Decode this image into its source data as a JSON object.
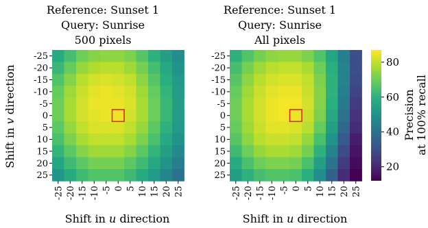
{
  "chart_data": [
    {
      "type": "heatmap",
      "title_lines": [
        "Reference: Sunset 1",
        "Query: Sunrise",
        "500 pixels"
      ],
      "xlabel": "Shift in u direction",
      "xlabel_prefix": "Shift in ",
      "xlabel_var": "u",
      "xlabel_suffix": " direction",
      "ylabel": "Shift in v direction",
      "ylabel_prefix": "Shift in ",
      "ylabel_var": "v",
      "ylabel_suffix": " direction",
      "x_ticks": [
        "-25",
        "-20",
        "-15",
        "-10",
        "-5",
        "0",
        "5",
        "10",
        "15",
        "20",
        "25"
      ],
      "y_ticks": [
        "-25",
        "-20",
        "-15",
        "-10",
        "-5",
        "0",
        "5",
        "10",
        "15",
        "20",
        "25"
      ],
      "highlight": {
        "u": 0,
        "v": 0,
        "color": "#e41a1c"
      },
      "values": [
        [
          58,
          64,
          70,
          73,
          74,
          74,
          72,
          67,
          60,
          54,
          48
        ],
        [
          62,
          69,
          75,
          78,
          79,
          79,
          76,
          71,
          64,
          57,
          50
        ],
        [
          66,
          73,
          79,
          82,
          83,
          82,
          80,
          74,
          67,
          59,
          52
        ],
        [
          69,
          76,
          81,
          84,
          85,
          84,
          82,
          76,
          69,
          61,
          53
        ],
        [
          70,
          77,
          82,
          85,
          85,
          85,
          83,
          77,
          70,
          62,
          54
        ],
        [
          70,
          77,
          82,
          84,
          85,
          85,
          82,
          77,
          70,
          62,
          53
        ],
        [
          68,
          75,
          80,
          83,
          83,
          83,
          80,
          75,
          68,
          60,
          52
        ],
        [
          65,
          72,
          77,
          80,
          80,
          80,
          77,
          72,
          65,
          57,
          50
        ],
        [
          61,
          68,
          73,
          76,
          76,
          76,
          73,
          68,
          61,
          54,
          47
        ],
        [
          56,
          63,
          68,
          71,
          71,
          71,
          68,
          63,
          57,
          50,
          44
        ],
        [
          51,
          58,
          63,
          66,
          66,
          66,
          63,
          58,
          52,
          46,
          40
        ]
      ]
    },
    {
      "type": "heatmap",
      "title_lines": [
        "Reference: Sunset 1",
        "Query: Sunrise",
        "All pixels"
      ],
      "xlabel": "Shift in u direction",
      "xlabel_prefix": "Shift in ",
      "xlabel_var": "u",
      "xlabel_suffix": " direction",
      "x_ticks": [
        "-25",
        "-20",
        "-15",
        "-10",
        "-5",
        "0",
        "5",
        "10",
        "15",
        "20",
        "25"
      ],
      "y_ticks": [
        "-25",
        "-20",
        "-15",
        "-10",
        "-5",
        "0",
        "5",
        "10",
        "15",
        "20",
        "25"
      ],
      "highlight": {
        "u": 0,
        "v": 0,
        "color": "#e41a1c"
      },
      "values": [
        [
          60,
          66,
          71,
          74,
          75,
          75,
          72,
          66,
          56,
          44,
          30
        ],
        [
          64,
          71,
          76,
          79,
          80,
          80,
          77,
          70,
          59,
          45,
          30
        ],
        [
          67,
          74,
          79,
          82,
          83,
          83,
          80,
          72,
          60,
          45,
          29
        ],
        [
          69,
          76,
          81,
          84,
          85,
          85,
          81,
          73,
          60,
          44,
          27
        ],
        [
          70,
          77,
          82,
          85,
          86,
          86,
          82,
          73,
          59,
          42,
          25
        ],
        [
          70,
          77,
          82,
          85,
          86,
          85,
          81,
          72,
          57,
          40,
          23
        ],
        [
          69,
          76,
          81,
          84,
          84,
          83,
          79,
          69,
          54,
          37,
          21
        ],
        [
          67,
          74,
          79,
          81,
          81,
          80,
          75,
          65,
          50,
          33,
          18
        ],
        [
          63,
          70,
          75,
          77,
          77,
          76,
          71,
          60,
          45,
          29,
          16
        ],
        [
          58,
          65,
          70,
          72,
          72,
          71,
          65,
          54,
          40,
          25,
          14
        ],
        [
          53,
          60,
          64,
          66,
          66,
          65,
          59,
          48,
          35,
          21,
          12
        ]
      ]
    }
  ],
  "colorbar": {
    "label_line1": "Precision",
    "label_line2": "at 100% recall",
    "vmin": 12,
    "vmax": 87,
    "ticks": [
      20,
      40,
      60,
      80
    ],
    "tick_labels": [
      "20",
      "40",
      "60",
      "80"
    ],
    "colormap": "viridis"
  }
}
